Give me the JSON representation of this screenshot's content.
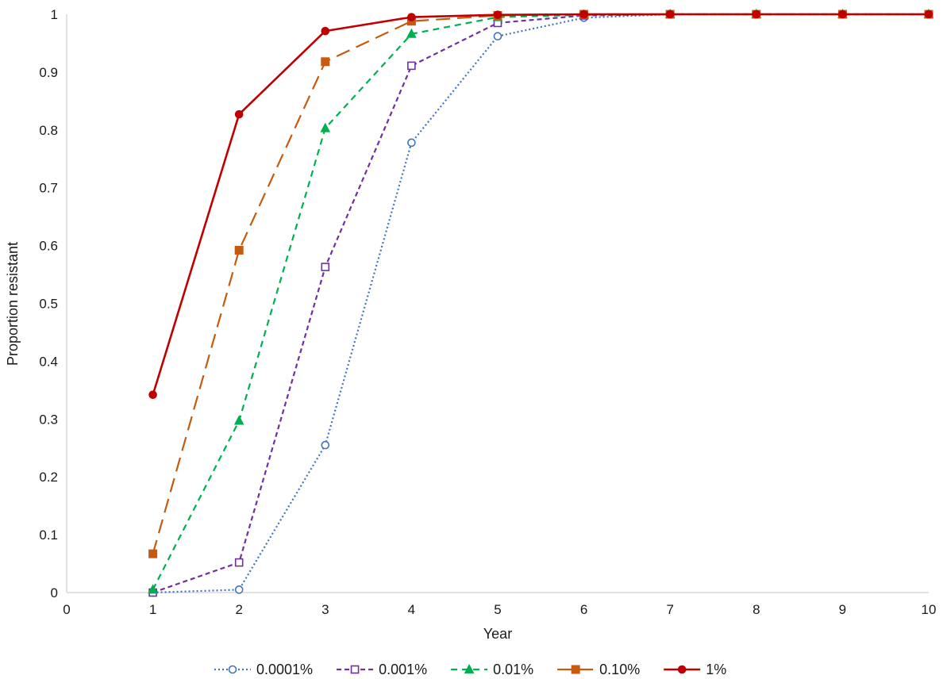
{
  "chart_data": {
    "type": "line",
    "title": "",
    "xlabel": "Year",
    "ylabel": "Proportion resistant",
    "xlim": [
      0,
      10
    ],
    "ylim": [
      0,
      1
    ],
    "x_ticks": [
      0,
      1,
      2,
      3,
      4,
      5,
      6,
      7,
      8,
      9,
      10
    ],
    "y_ticks": [
      0,
      0.1,
      0.2,
      0.3,
      0.4,
      0.5,
      0.6,
      0.7,
      0.8,
      0.9,
      1
    ],
    "grid": false,
    "legend_position": "bottom",
    "x": [
      1,
      2,
      3,
      4,
      5,
      6,
      7,
      8,
      9,
      10
    ],
    "series": [
      {
        "name": "0.0001%",
        "color": "#4472c4",
        "marker": "circle-open",
        "dash": "dotted",
        "values": [
          0,
          0.005,
          0.255,
          0.778,
          0.962,
          0.994,
          1,
          1,
          1,
          1
        ]
      },
      {
        "name": "0.001%",
        "color": "#7030a0",
        "marker": "square-open",
        "dash": "short-dash",
        "values": [
          0,
          0.052,
          0.563,
          0.911,
          0.985,
          0.998,
          1,
          1,
          1,
          1
        ]
      },
      {
        "name": "0.01%",
        "color": "#00b050",
        "marker": "triangle-filled",
        "dash": "dash",
        "values": [
          0.005,
          0.297,
          0.803,
          0.966,
          0.995,
          0.999,
          1,
          1,
          1,
          1
        ]
      },
      {
        "name": "0.10%",
        "color": "#c55a11",
        "marker": "square-filled",
        "dash": "long-dash",
        "values": [
          0.067,
          0.592,
          0.918,
          0.988,
          0.998,
          1,
          1,
          1,
          1,
          1
        ]
      },
      {
        "name": "1%",
        "color": "#c00000",
        "marker": "circle-filled",
        "dash": "solid",
        "values": [
          0.342,
          0.827,
          0.971,
          0.995,
          0.999,
          1,
          1,
          1,
          1,
          1
        ]
      }
    ]
  }
}
